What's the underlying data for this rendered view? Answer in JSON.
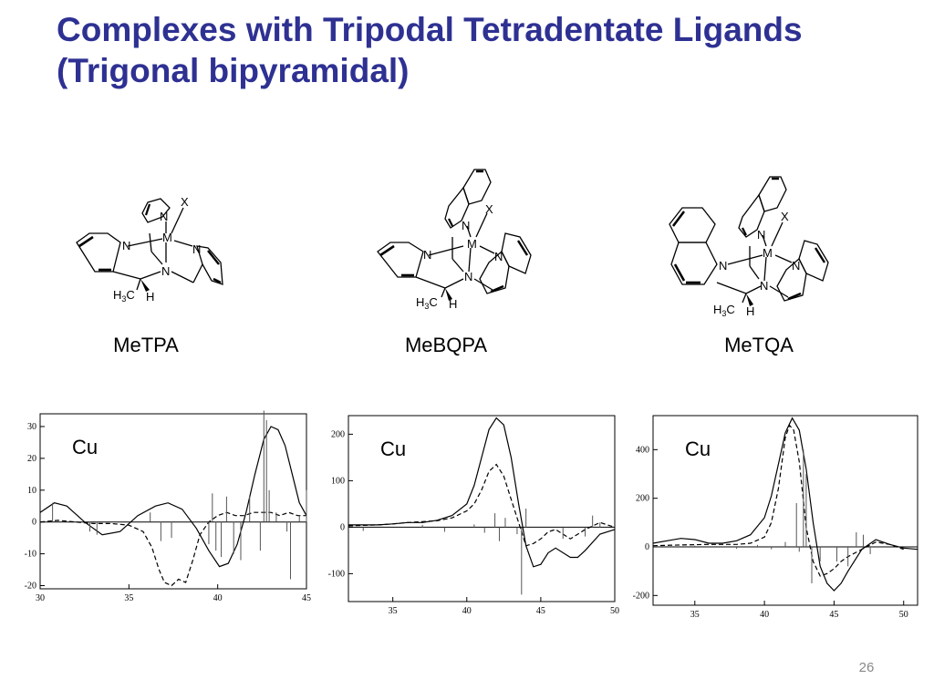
{
  "slide": {
    "title_line1": "Complexes with Tripodal Tetradentate Ligands",
    "title_line2": "(Trigonal bipyramidal)",
    "page_number": "26"
  },
  "colors": {
    "title": "#2e3192",
    "ink": "#000000",
    "page_number": "#888888"
  },
  "structures": [
    {
      "label": "MeTPA",
      "atoms": {
        "N": "N",
        "M": "M",
        "X": "X",
        "H": "H",
        "C": "C",
        "sub": "3"
      }
    },
    {
      "label": "MeBQPA",
      "atoms": {
        "N": "N",
        "M": "M",
        "X": "X",
        "H": "H",
        "C": "C",
        "sub": "3"
      }
    },
    {
      "label": "MeTQA",
      "atoms": {
        "N": "N",
        "M": "M",
        "X": "X",
        "H": "H",
        "C": "C",
        "sub": "3"
      }
    }
  ],
  "chart_data": [
    {
      "type": "line",
      "annotation": "Cu",
      "xlim": [
        30,
        45
      ],
      "ylim": [
        -21,
        34
      ],
      "xticks": [
        30,
        35,
        40,
        45
      ],
      "yticks": [
        -20,
        -10,
        0,
        10,
        20,
        30
      ],
      "series": [
        {
          "style": "solid",
          "x": [
            30,
            30.8,
            31.5,
            32.5,
            33.5,
            34.5,
            35.5,
            36.5,
            37.2,
            38,
            38.8,
            39.5,
            40.1,
            40.6,
            41.1,
            41.6,
            42.1,
            42.6,
            43,
            43.4,
            43.8,
            44.2,
            44.6,
            45
          ],
          "y": [
            3,
            6,
            5,
            0,
            -4,
            -3,
            2,
            5,
            6,
            4,
            -2,
            -9,
            -14,
            -13,
            -7,
            3,
            15,
            26,
            30,
            29,
            24,
            15,
            6,
            2
          ]
        },
        {
          "style": "dashed",
          "x": [
            30,
            31,
            32,
            33,
            34,
            35,
            35.8,
            36.3,
            36.7,
            37,
            37.4,
            37.8,
            38.2,
            38.6,
            39,
            39.5,
            40,
            40.5,
            41,
            41.5,
            42,
            42.5,
            43,
            43.5,
            44,
            44.5,
            45
          ],
          "y": [
            0,
            0.5,
            0,
            -0.5,
            -0.5,
            -1,
            -3,
            -8,
            -15,
            -19,
            -20,
            -18,
            -19,
            -12,
            -4,
            0,
            2,
            3,
            2,
            2,
            3,
            3,
            3,
            2,
            3,
            2,
            2
          ]
        },
        {
          "style": "sticks",
          "x": [
            30.7,
            32.8,
            33.2,
            36.2,
            36.8,
            37.4,
            39.5,
            39.7,
            39.9,
            40.2,
            40.5,
            40.9,
            41.3,
            41.8,
            42.4,
            42.6,
            42.75,
            42.9,
            43.3,
            43.9,
            44.1,
            44.6,
            45
          ],
          "y": [
            6,
            -3,
            -4,
            3,
            -6,
            -5,
            -7,
            9,
            -9,
            -11,
            8,
            -10,
            -12,
            8,
            -9,
            35,
            32,
            10,
            3,
            -3,
            -18,
            2,
            10
          ]
        }
      ]
    },
    {
      "type": "line",
      "annotation": "Cu",
      "xlim": [
        32,
        50
      ],
      "ylim": [
        -160,
        240
      ],
      "xticks": [
        35,
        40,
        45,
        50
      ],
      "yticks": [
        -100,
        0,
        100,
        200
      ],
      "series": [
        {
          "style": "solid",
          "x": [
            32,
            33,
            34,
            35,
            36,
            37,
            38,
            39,
            40,
            40.5,
            41,
            41.5,
            42,
            42.5,
            43,
            43.5,
            44,
            44.5,
            45,
            45.5,
            46,
            47,
            47.5,
            48,
            49,
            50
          ],
          "y": [
            5,
            5,
            5,
            7,
            10,
            10,
            15,
            25,
            50,
            90,
            150,
            210,
            235,
            220,
            150,
            50,
            -40,
            -85,
            -80,
            -55,
            -45,
            -65,
            -65,
            -50,
            -15,
            -5
          ]
        },
        {
          "style": "dashed",
          "x": [
            32,
            33,
            34,
            35,
            36,
            37,
            38,
            39,
            40,
            40.5,
            41,
            41.5,
            42,
            42.5,
            43,
            43.5,
            44,
            44.5,
            45,
            45.5,
            46,
            46.5,
            47,
            48,
            49,
            50
          ],
          "y": [
            3,
            4,
            5,
            7,
            10,
            12,
            14,
            20,
            35,
            50,
            80,
            120,
            135,
            110,
            60,
            10,
            -40,
            -35,
            -25,
            -10,
            -5,
            -15,
            -25,
            -5,
            10,
            0
          ]
        },
        {
          "style": "sticks",
          "x": [
            33,
            37,
            38.5,
            40.5,
            41.2,
            41.9,
            42.2,
            42.6,
            43.4,
            43.7,
            44,
            46.5,
            48,
            48.5,
            49
          ],
          "y": [
            -8,
            5,
            -10,
            6,
            -12,
            30,
            -30,
            20,
            -15,
            -145,
            40,
            -25,
            -20,
            25,
            10
          ]
        }
      ]
    },
    {
      "type": "line",
      "annotation": "Cu",
      "xlim": [
        32,
        51
      ],
      "ylim": [
        -240,
        540
      ],
      "xticks": [
        35,
        40,
        45,
        50
      ],
      "yticks": [
        -200,
        0,
        200,
        400
      ],
      "series": [
        {
          "style": "solid",
          "x": [
            32,
            33,
            34,
            35,
            36,
            37,
            38,
            39,
            40,
            40.5,
            41,
            41.5,
            42,
            42.5,
            43,
            43.5,
            44,
            44.5,
            45,
            45.5,
            46,
            47,
            48,
            49,
            50,
            51
          ],
          "y": [
            15,
            25,
            35,
            30,
            15,
            15,
            25,
            50,
            120,
            210,
            340,
            470,
            530,
            480,
            320,
            100,
            -80,
            -150,
            -180,
            -150,
            -100,
            -10,
            30,
            10,
            -5,
            -10
          ]
        },
        {
          "style": "dashed",
          "x": [
            32,
            34,
            36,
            38,
            39,
            40,
            40.5,
            41,
            41.5,
            41.8,
            42.1,
            42.5,
            43,
            43.5,
            44,
            44.5,
            45,
            45.5,
            46,
            47,
            48,
            49,
            50
          ],
          "y": [
            5,
            8,
            10,
            10,
            15,
            40,
            100,
            240,
            450,
            500,
            480,
            350,
            80,
            -60,
            -120,
            -110,
            -90,
            -60,
            -40,
            -10,
            20,
            10,
            -10
          ]
        },
        {
          "style": "sticks",
          "x": [
            35,
            38,
            39.5,
            40.5,
            41.5,
            42.3,
            42.5,
            42.8,
            43,
            43.4,
            44,
            45.2,
            46,
            46.6,
            47.1,
            47.6
          ],
          "y": [
            5,
            -8,
            8,
            -10,
            20,
            180,
            -20,
            400,
            300,
            -150,
            -60,
            -60,
            -80,
            60,
            50,
            -30
          ]
        }
      ]
    }
  ]
}
